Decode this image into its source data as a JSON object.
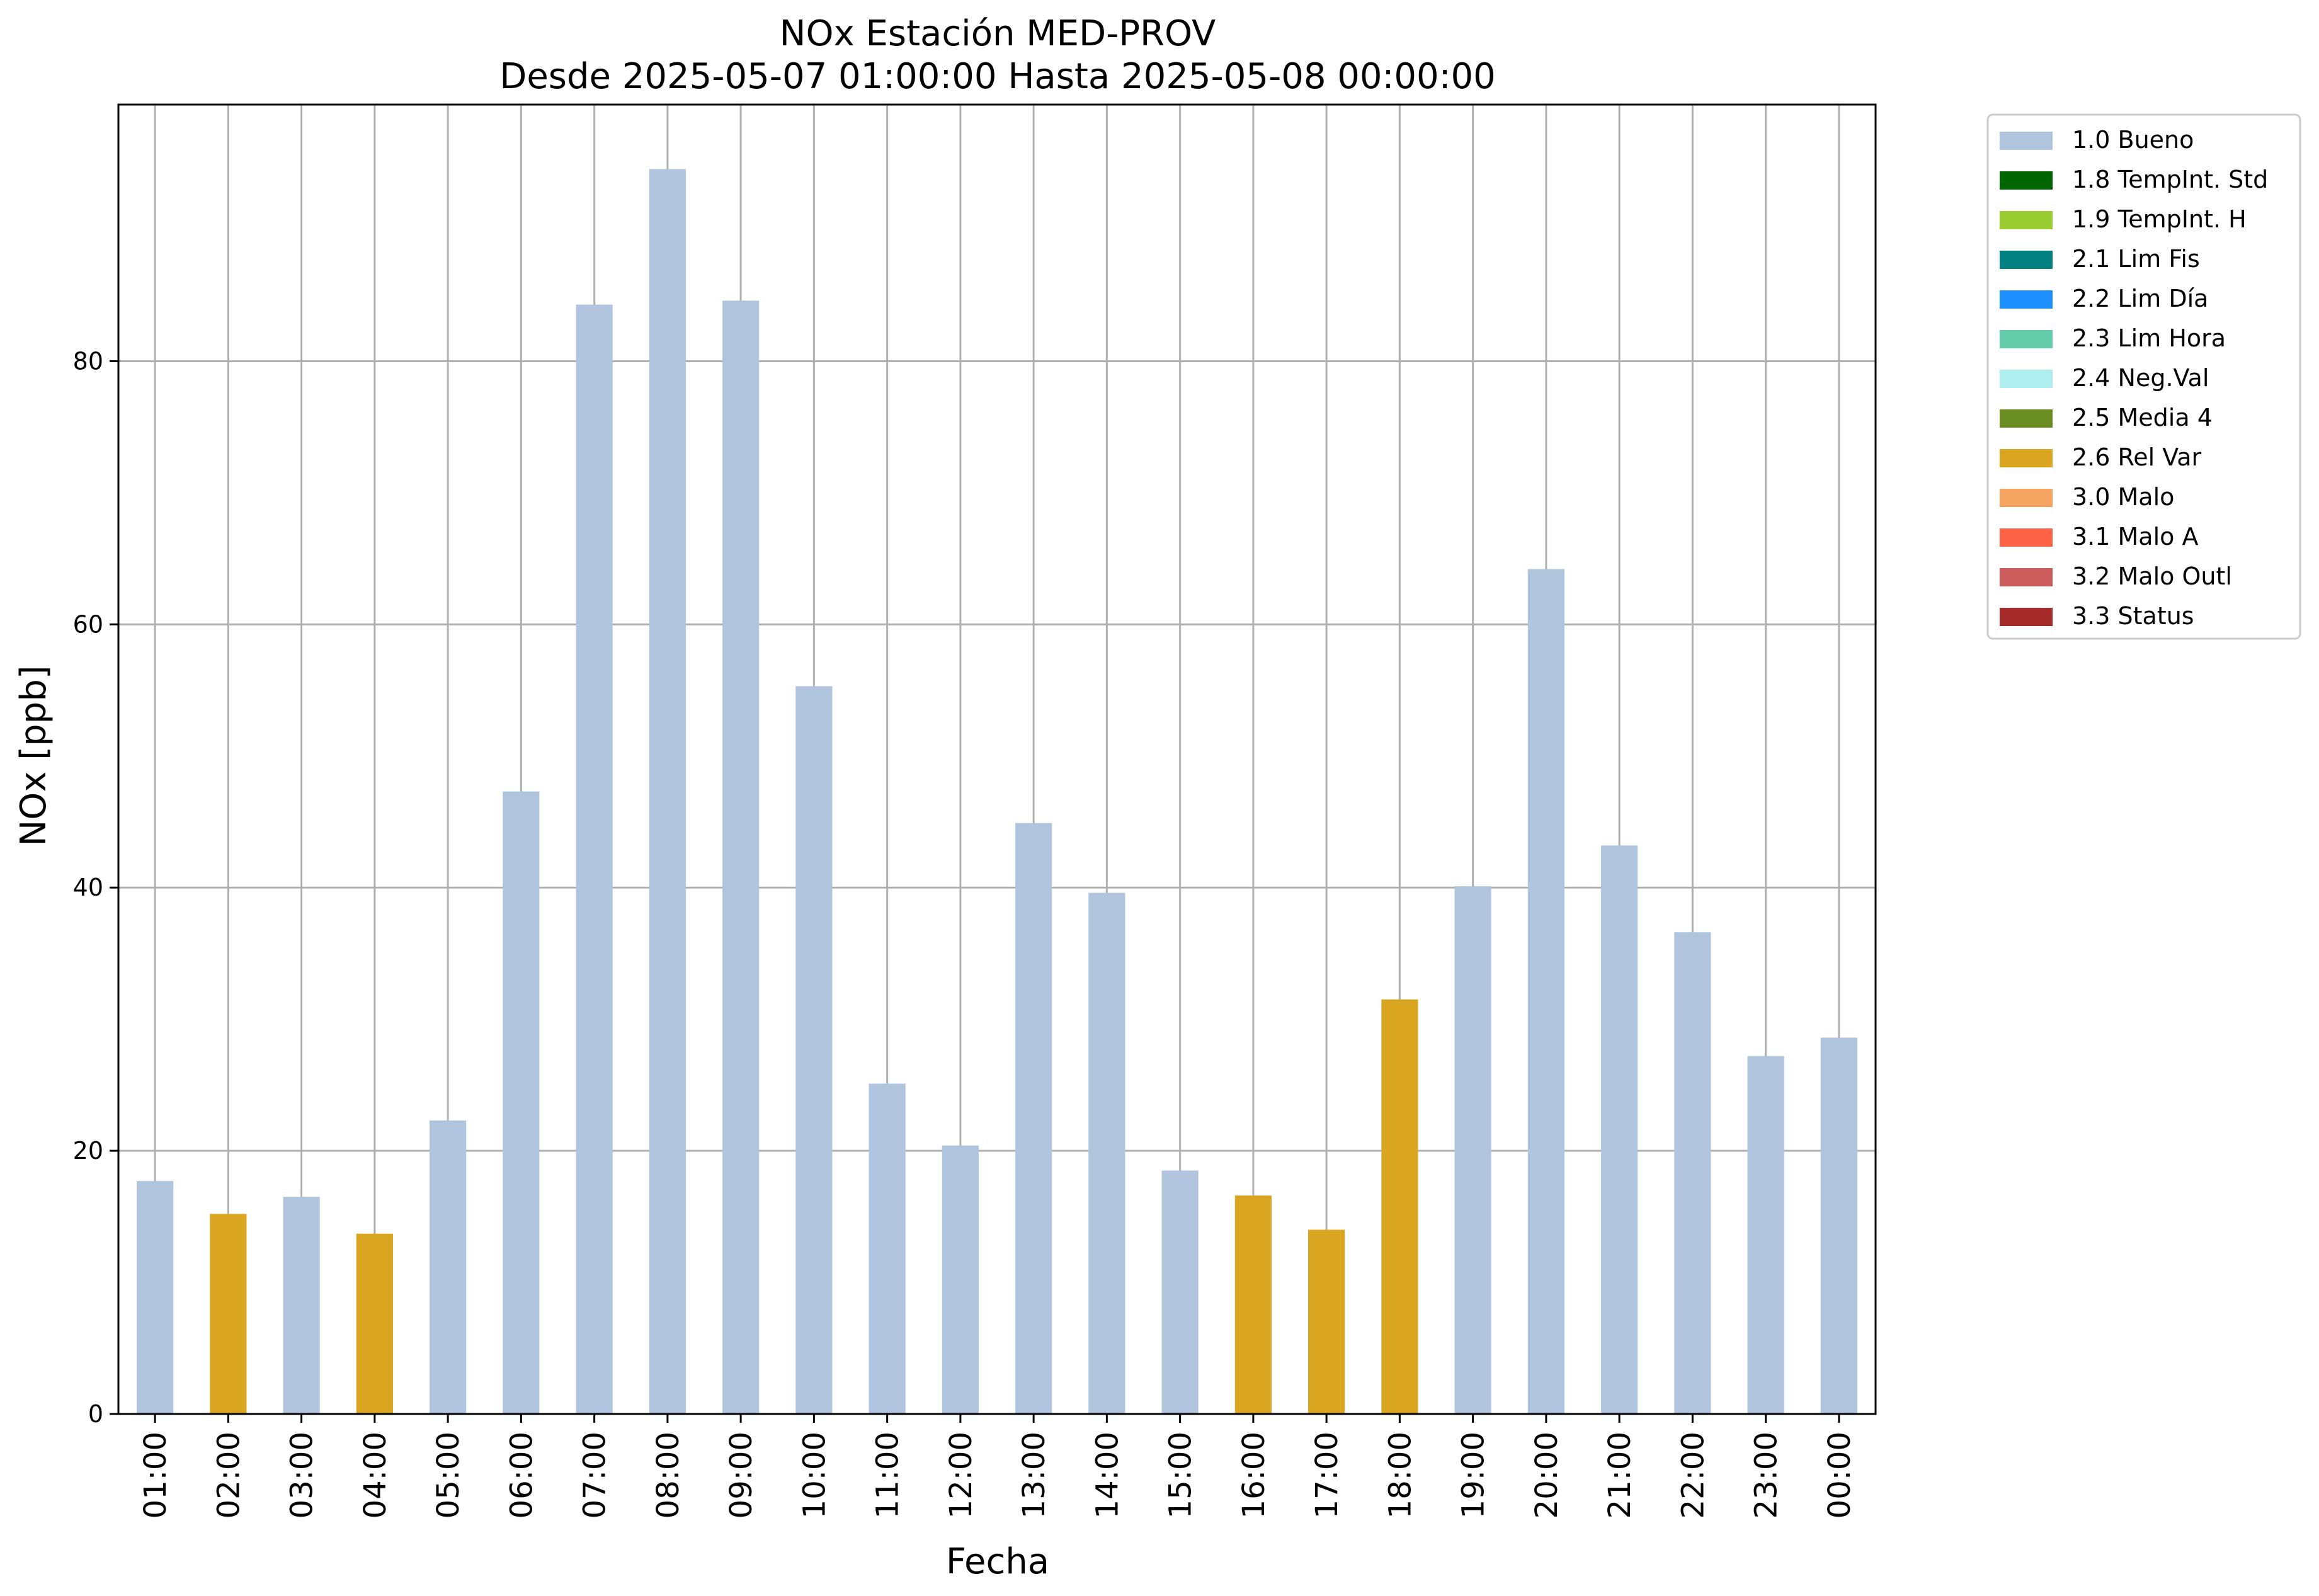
{
  "chart_data": {
    "type": "bar",
    "title": "NOx Estación MED-PROV",
    "subtitle": "Desde 2025-05-07 01:00:00 Hasta 2025-05-08 00:00:00",
    "xlabel": "Fecha",
    "ylabel": "NOx [ppb]",
    "ylim": [
      0,
      99.5
    ],
    "yticks": [
      0,
      20,
      40,
      60,
      80
    ],
    "grid": true,
    "legend_position": "outside-top-right",
    "categories": [
      "01:00",
      "02:00",
      "03:00",
      "04:00",
      "05:00",
      "06:00",
      "07:00",
      "08:00",
      "09:00",
      "10:00",
      "11:00",
      "12:00",
      "13:00",
      "14:00",
      "15:00",
      "16:00",
      "17:00",
      "18:00",
      "19:00",
      "20:00",
      "21:00",
      "22:00",
      "23:00",
      "00:00"
    ],
    "values": [
      17.7,
      15.2,
      16.5,
      13.7,
      22.3,
      47.3,
      84.3,
      94.6,
      84.6,
      55.3,
      25.1,
      20.4,
      44.9,
      39.6,
      18.5,
      16.6,
      14.0,
      31.5,
      40.1,
      64.2,
      43.2,
      36.6,
      27.2,
      28.6
    ],
    "flags": [
      "1.0 Bueno",
      "2.6 Rel Var",
      "1.0 Bueno",
      "2.6 Rel Var",
      "1.0 Bueno",
      "1.0 Bueno",
      "1.0 Bueno",
      "1.0 Bueno",
      "1.0 Bueno",
      "1.0 Bueno",
      "1.0 Bueno",
      "1.0 Bueno",
      "1.0 Bueno",
      "1.0 Bueno",
      "1.0 Bueno",
      "2.6 Rel Var",
      "2.6 Rel Var",
      "2.6 Rel Var",
      "1.0 Bueno",
      "1.0 Bueno",
      "1.0 Bueno",
      "1.0 Bueno",
      "1.0 Bueno",
      "1.0 Bueno"
    ],
    "legend": [
      {
        "name": "1.0 Bueno",
        "color": "#b0c4de"
      },
      {
        "name": "1.8 TempInt. Std",
        "color": "#006400"
      },
      {
        "name": "1.9 TempInt. H",
        "color": "#9acd32"
      },
      {
        "name": "2.1 Lim Fis",
        "color": "#008080"
      },
      {
        "name": "2.2 Lim Día",
        "color": "#1e90ff"
      },
      {
        "name": "2.3 Lim Hora",
        "color": "#66cdaa"
      },
      {
        "name": "2.4 Neg.Val",
        "color": "#afeeee"
      },
      {
        "name": "2.5 Media 4",
        "color": "#6b8e23"
      },
      {
        "name": "2.6 Rel Var",
        "color": "#daa520"
      },
      {
        "name": "3.0 Malo",
        "color": "#f4a460"
      },
      {
        "name": "3.1 Malo A",
        "color": "#ff6347"
      },
      {
        "name": "3.2 Malo Outl",
        "color": "#cd5c5c"
      },
      {
        "name": "3.3 Status",
        "color": "#a52a2a"
      }
    ]
  }
}
